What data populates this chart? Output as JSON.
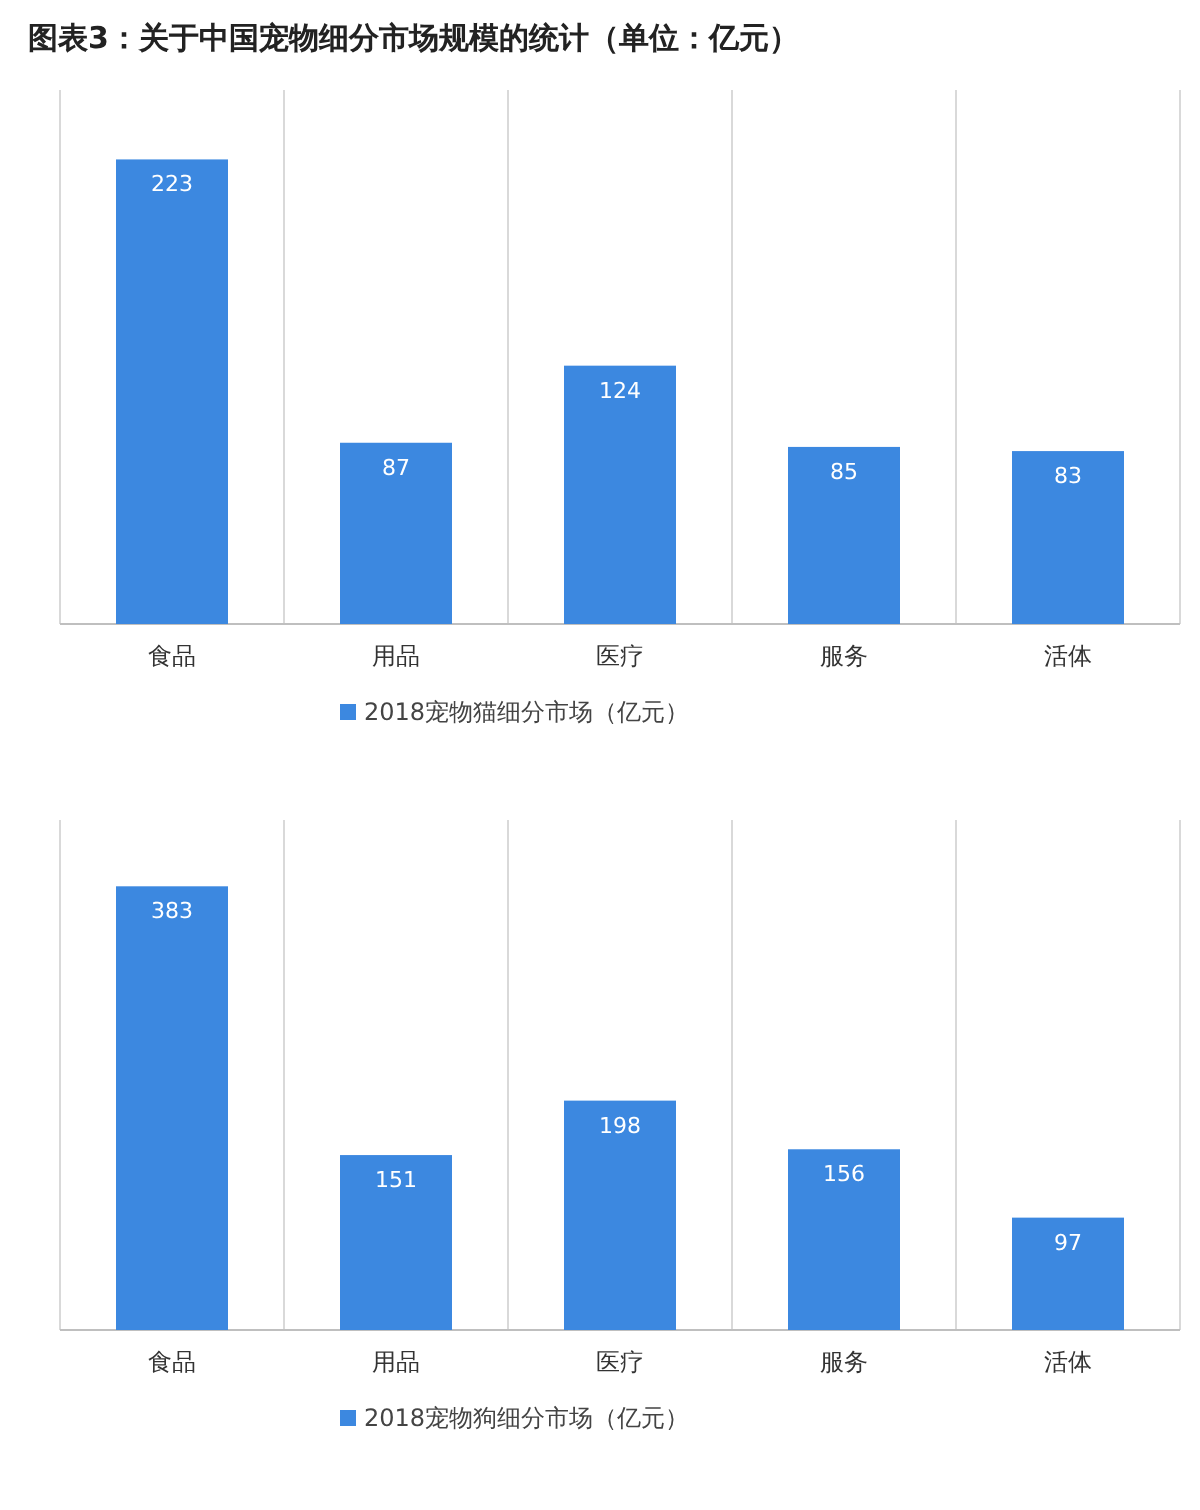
{
  "chart_data": [
    {
      "type": "bar",
      "title": "图表3：关于中国宠物细分市场规模的统计（单位：亿元）",
      "categories": [
        "食品",
        "用品",
        "医疗",
        "服务",
        "活体"
      ],
      "series": [
        {
          "name": "2018宠物猫细分市场（亿元）",
          "color": "#3c88e0",
          "values": [
            223,
            87,
            124,
            85,
            83
          ]
        }
      ],
      "data_labels": true,
      "grid": "x",
      "legend": "bottom"
    },
    {
      "type": "bar",
      "categories": [
        "食品",
        "用品",
        "医疗",
        "服务",
        "活体"
      ],
      "series": [
        {
          "name": "2018宠物狗细分市场（亿元）",
          "color": "#3c88e0",
          "values": [
            383,
            151,
            198,
            156,
            97
          ]
        }
      ],
      "data_labels": true,
      "grid": "x",
      "legend": "bottom"
    }
  ]
}
